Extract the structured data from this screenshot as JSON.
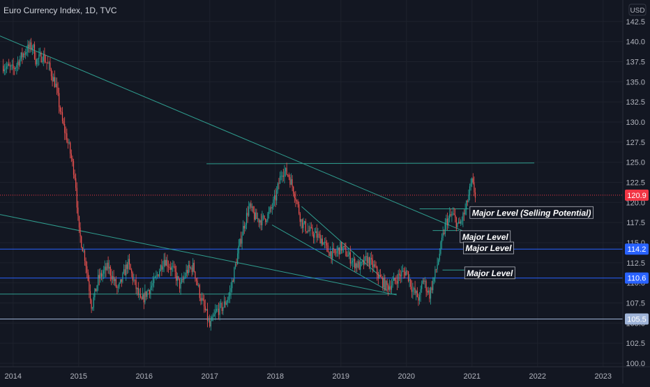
{
  "chart_data": {
    "type": "candlestick",
    "title": "Euro Currency Index, 1D, TVC",
    "currency": "USD",
    "x_range": [
      2013.8,
      2023.3
    ],
    "ylim": [
      100.0,
      143.0
    ],
    "x_ticks": [
      {
        "label": "2014",
        "value": 2014
      },
      {
        "label": "2015",
        "value": 2015
      },
      {
        "label": "2016",
        "value": 2016
      },
      {
        "label": "2017",
        "value": 2017
      },
      {
        "label": "2018",
        "value": 2018
      },
      {
        "label": "2019",
        "value": 2019
      },
      {
        "label": "2020",
        "value": 2020
      },
      {
        "label": "2021",
        "value": 2021
      },
      {
        "label": "2022",
        "value": 2022
      },
      {
        "label": "2023",
        "value": 2023
      }
    ],
    "y_ticks": [
      "142.5",
      "140.0",
      "137.5",
      "135.0",
      "132.5",
      "130.0",
      "127.5",
      "125.0",
      "122.5",
      "120.0",
      "117.5",
      "115.0",
      "112.5",
      "110.0",
      "107.5",
      "105.0",
      "102.5",
      "100.0"
    ],
    "price_path": [
      [
        2013.85,
        137.0
      ],
      [
        2014.0,
        136.5
      ],
      [
        2014.1,
        137.8
      ],
      [
        2014.2,
        139.0
      ],
      [
        2014.3,
        139.5
      ],
      [
        2014.35,
        137.5
      ],
      [
        2014.45,
        138.3
      ],
      [
        2014.55,
        136.8
      ],
      [
        2014.65,
        134.5
      ],
      [
        2014.75,
        130.0
      ],
      [
        2014.85,
        127.0
      ],
      [
        2014.95,
        123.0
      ],
      [
        2015.0,
        116.5
      ],
      [
        2015.1,
        113.0
      ],
      [
        2015.2,
        107.0
      ],
      [
        2015.3,
        110.5
      ],
      [
        2015.45,
        112.0
      ],
      [
        2015.6,
        109.0
      ],
      [
        2015.75,
        112.5
      ],
      [
        2015.85,
        110.0
      ],
      [
        2015.95,
        107.5
      ],
      [
        2016.05,
        109.0
      ],
      [
        2016.15,
        110.0
      ],
      [
        2016.3,
        113.0
      ],
      [
        2016.45,
        111.5
      ],
      [
        2016.55,
        109.5
      ],
      [
        2016.65,
        111.5
      ],
      [
        2016.75,
        112.0
      ],
      [
        2016.85,
        108.5
      ],
      [
        2016.95,
        106.0
      ],
      [
        2017.0,
        104.5
      ],
      [
        2017.1,
        106.5
      ],
      [
        2017.2,
        107.0
      ],
      [
        2017.3,
        108.5
      ],
      [
        2017.4,
        112.5
      ],
      [
        2017.5,
        116.5
      ],
      [
        2017.6,
        119.5
      ],
      [
        2017.7,
        118.0
      ],
      [
        2017.8,
        117.8
      ],
      [
        2017.9,
        118.5
      ],
      [
        2018.0,
        120.5
      ],
      [
        2018.1,
        124.0
      ],
      [
        2018.2,
        123.5
      ],
      [
        2018.3,
        121.0
      ],
      [
        2018.4,
        117.5
      ],
      [
        2018.5,
        116.5
      ],
      [
        2018.6,
        116.0
      ],
      [
        2018.7,
        115.5
      ],
      [
        2018.8,
        114.0
      ],
      [
        2018.9,
        113.5
      ],
      [
        2019.0,
        114.5
      ],
      [
        2019.1,
        113.5
      ],
      [
        2019.2,
        112.5
      ],
      [
        2019.3,
        112.0
      ],
      [
        2019.4,
        113.0
      ],
      [
        2019.5,
        112.0
      ],
      [
        2019.6,
        110.5
      ],
      [
        2019.7,
        109.5
      ],
      [
        2019.8,
        110.0
      ],
      [
        2019.9,
        111.0
      ],
      [
        2020.0,
        111.5
      ],
      [
        2020.1,
        109.0
      ],
      [
        2020.2,
        108.0
      ],
      [
        2020.25,
        110.5
      ],
      [
        2020.35,
        108.5
      ],
      [
        2020.45,
        111.5
      ],
      [
        2020.55,
        115.5
      ],
      [
        2020.6,
        117.5
      ],
      [
        2020.7,
        118.5
      ],
      [
        2020.8,
        117.0
      ],
      [
        2020.9,
        119.0
      ],
      [
        2020.95,
        121.0
      ],
      [
        2021.0,
        122.5
      ],
      [
        2021.05,
        120.9
      ]
    ],
    "last_price": "120.9",
    "horizontal_levels": [
      {
        "value": 114.2,
        "label": "114.2",
        "color": "#2962ff"
      },
      {
        "value": 110.6,
        "label": "110.6",
        "color": "#2962ff"
      },
      {
        "value": 105.5,
        "label": "105.5",
        "color": "#9fb4d8"
      }
    ],
    "trendlines": [
      {
        "x1": 2013.8,
        "y1": 140.7,
        "x2": 2020.85,
        "y2": 116.5
      },
      {
        "x1": 2013.8,
        "y1": 118.5,
        "x2": 2019.85,
        "y2": 108.5
      },
      {
        "x1": 2013.8,
        "y1": 108.6,
        "x2": 2019.85,
        "y2": 108.6
      },
      {
        "x1": 2016.95,
        "y1": 124.8,
        "x2": 2021.95,
        "y2": 124.9
      },
      {
        "x1": 2017.95,
        "y1": 117.2,
        "x2": 2019.7,
        "y2": 109.1
      },
      {
        "x1": 2018.4,
        "y1": 119.5,
        "x2": 2019.6,
        "y2": 110.8
      },
      {
        "x1": 2020.2,
        "y1": 119.2,
        "x2": 2020.95,
        "y2": 119.2
      },
      {
        "x1": 2020.4,
        "y1": 116.5,
        "x2": 2020.8,
        "y2": 116.5
      },
      {
        "x1": 2020.55,
        "y1": 111.6,
        "x2": 2020.95,
        "y2": 111.6
      }
    ],
    "annotations": [
      {
        "text": "Major Level (Selling Potential)",
        "x": 2021.0,
        "y": 118.7
      },
      {
        "text": "Major Level",
        "x": 2020.85,
        "y": 115.7
      },
      {
        "text": "Major Level",
        "x": 2020.9,
        "y": 114.3
      },
      {
        "text": "Major Level",
        "x": 2020.92,
        "y": 111.2
      }
    ],
    "colors": {
      "up": "#26a69a",
      "down": "#ef5350",
      "background": "#131722",
      "trendline": "#2f9e8f",
      "last_price": "#f23645"
    }
  }
}
